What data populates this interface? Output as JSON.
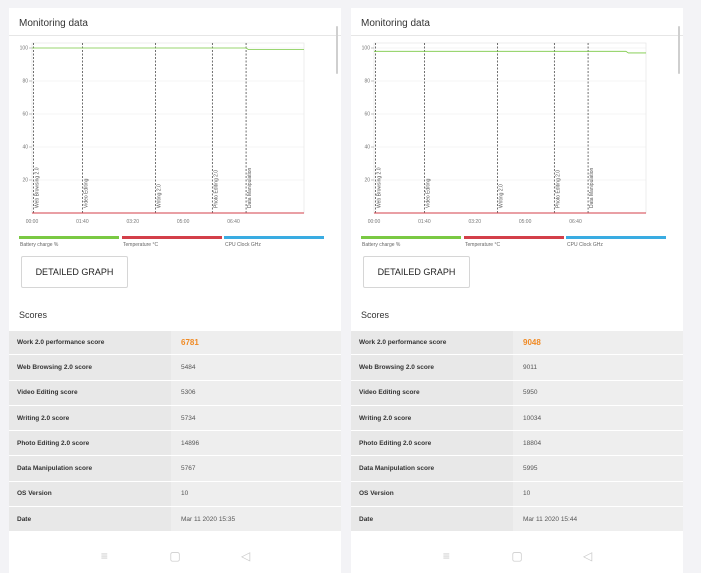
{
  "panels": [
    {
      "title": "Monitoring data",
      "button_label": "DETAILED GRAPH",
      "scores_title": "Scores",
      "rows": [
        {
          "label": "Work 2.0 performance score",
          "value": "6781",
          "highlight": true
        },
        {
          "label": "Web Browsing 2.0 score",
          "value": "5484"
        },
        {
          "label": "Video Editing score",
          "value": "5306"
        },
        {
          "label": "Writing 2.0 score",
          "value": "5734"
        },
        {
          "label": "Photo Editing 2.0 score",
          "value": "14896"
        },
        {
          "label": "Data Manipulation score",
          "value": "5767"
        },
        {
          "label": "OS Version",
          "value": "10"
        },
        {
          "label": "Date",
          "value": "Mar 11 2020 15:35"
        }
      ],
      "chart_data": {
        "type": "line",
        "x_tick_labels": [
          "00:00",
          "01:40",
          "03:20",
          "05:00",
          "06:40"
        ],
        "y_tick_labels": [
          "100",
          "80",
          "60",
          "40",
          "20"
        ],
        "ylim": [
          0,
          100
        ],
        "xlim_seconds": [
          0,
          540
        ],
        "phase_markers": [
          {
            "label": "Web Browsing 2.0",
            "t": 3
          },
          {
            "label": "Video Editing",
            "t": 100
          },
          {
            "label": "Writing 2.0",
            "t": 245
          },
          {
            "label": "Photo Editing 2.0",
            "t": 358
          },
          {
            "label": "Data Manipulation",
            "t": 425
          }
        ],
        "series": [
          {
            "name": "Battery charge %",
            "color": "#7ac943",
            "x_seconds": [
              0,
              425,
              430,
              540
            ],
            "values": [
              100,
              100,
              99,
              99
            ]
          },
          {
            "name": "Temperature °C",
            "color": "#d33f49",
            "x_seconds": [
              0,
              540
            ],
            "values": [
              0,
              0
            ]
          },
          {
            "name": "CPU Clock GHz",
            "color": "#3aace2",
            "x_seconds": [],
            "values": []
          }
        ]
      }
    },
    {
      "title": "Monitoring data",
      "button_label": "DETAILED GRAPH",
      "scores_title": "Scores",
      "rows": [
        {
          "label": "Work 2.0 performance score",
          "value": "9048",
          "highlight": true
        },
        {
          "label": "Web Browsing 2.0 score",
          "value": "9011"
        },
        {
          "label": "Video Editing score",
          "value": "5950"
        },
        {
          "label": "Writing 2.0 score",
          "value": "10034"
        },
        {
          "label": "Photo Editing 2.0 score",
          "value": "18804"
        },
        {
          "label": "Data Manipulation score",
          "value": "5995"
        },
        {
          "label": "OS Version",
          "value": "10"
        },
        {
          "label": "Date",
          "value": "Mar 11 2020 15:44"
        }
      ],
      "chart_data": {
        "type": "line",
        "x_tick_labels": [
          "00:00",
          "01:40",
          "03:20",
          "05:00",
          "06:40"
        ],
        "y_tick_labels": [
          "100",
          "80",
          "60",
          "40",
          "20"
        ],
        "ylim": [
          0,
          100
        ],
        "xlim_seconds": [
          0,
          540
        ],
        "phase_markers": [
          {
            "label": "Web Browsing 2.0",
            "t": 3
          },
          {
            "label": "Video Editing",
            "t": 100
          },
          {
            "label": "Writing 2.0",
            "t": 245
          },
          {
            "label": "Photo Editing 2.0",
            "t": 358
          },
          {
            "label": "Data Manipulation",
            "t": 425
          }
        ],
        "series": [
          {
            "name": "Battery charge %",
            "color": "#7ac943",
            "x_seconds": [
              0,
              500,
              505,
              540
            ],
            "values": [
              98,
              98,
              97,
              97
            ]
          },
          {
            "name": "Temperature °C",
            "color": "#d33f49",
            "x_seconds": [
              0,
              540
            ],
            "values": [
              0,
              0
            ]
          },
          {
            "name": "CPU Clock GHz",
            "color": "#3aace2",
            "x_seconds": [],
            "values": []
          }
        ]
      }
    }
  ],
  "navbar": {
    "menu_icon": "menu-lines-icon",
    "home_icon": "square-home-icon",
    "back_icon": "triangle-back-icon",
    "menu_glyph": "≡",
    "home_glyph": "▢",
    "back_glyph": "◁"
  }
}
